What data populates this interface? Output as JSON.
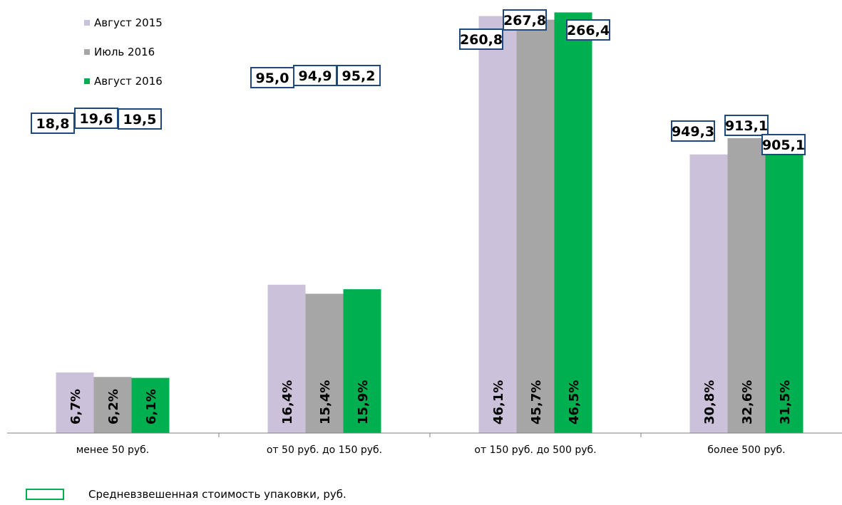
{
  "chart_data": {
    "type": "bar",
    "categories": [
      "менее 50 руб.",
      "от 50 руб. до 150 руб.",
      "от 150 руб. до 500 руб.",
      "более 500 руб."
    ],
    "series": [
      {
        "name": "Август 2015",
        "color": "#ccc1da",
        "shares": [
          6.7,
          16.4,
          46.1,
          30.8
        ],
        "share_labels": [
          "6,7%",
          "16,4%",
          "46,1%",
          "30,8%"
        ],
        "avg_price_labels": [
          "18,8",
          "95,0",
          "260,8",
          "949,3"
        ]
      },
      {
        "name": "Июль 2016",
        "color": "#a6a6a6",
        "shares": [
          6.2,
          15.4,
          45.7,
          32.6
        ],
        "share_labels": [
          "6,2%",
          "15,4%",
          "45,7%",
          "32,6%"
        ],
        "avg_price_labels": [
          "19,6",
          "94,9",
          "267,8",
          "913,1"
        ]
      },
      {
        "name": "Август 2016",
        "color": "#00b050",
        "shares": [
          6.1,
          15.9,
          46.5,
          31.5
        ],
        "share_labels": [
          "6,1%",
          "15,9%",
          "46,5%",
          "31,5%"
        ],
        "avg_price_labels": [
          "19,5",
          "95,2",
          "266,4",
          "905,1"
        ]
      }
    ],
    "box_note": "Средневзвешенная стоимость упаковки, руб.",
    "box_border_color": "#1f497d",
    "note_color": "#00b050"
  }
}
